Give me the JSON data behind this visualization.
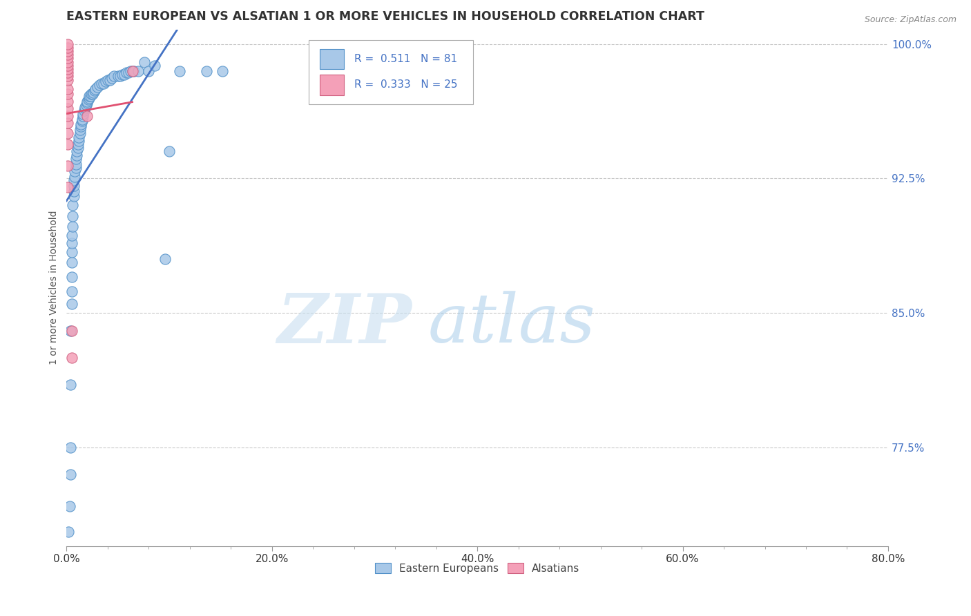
{
  "title": "EASTERN EUROPEAN VS ALSATIAN 1 OR MORE VEHICLES IN HOUSEHOLD CORRELATION CHART",
  "source_text": "Source: ZipAtlas.com",
  "ylabel": "1 or more Vehicles in Household",
  "xlim": [
    0.0,
    0.8
  ],
  "ylim": [
    0.72,
    1.008
  ],
  "xtick_labels": [
    "0.0%",
    "",
    "",
    "",
    "",
    "20.0%",
    "",
    "",
    "",
    "",
    "40.0%",
    "",
    "",
    "",
    "",
    "60.0%",
    "",
    "",
    "",
    "",
    "80.0%"
  ],
  "xtick_vals": [
    0.0,
    0.04,
    0.08,
    0.12,
    0.16,
    0.2,
    0.24,
    0.28,
    0.32,
    0.36,
    0.4,
    0.44,
    0.48,
    0.52,
    0.56,
    0.6,
    0.64,
    0.68,
    0.72,
    0.76,
    0.8
  ],
  "xtick_major_labels": [
    "0.0%",
    "20.0%",
    "40.0%",
    "60.0%",
    "80.0%"
  ],
  "xtick_major_vals": [
    0.0,
    0.2,
    0.4,
    0.6,
    0.8
  ],
  "ytick_labels": [
    "100.0%",
    "92.5%",
    "85.0%",
    "77.5%"
  ],
  "ytick_vals": [
    1.0,
    0.925,
    0.85,
    0.775
  ],
  "legend_entries": [
    "Eastern Europeans",
    "Alsatians"
  ],
  "R_blue": 0.511,
  "N_blue": 81,
  "R_pink": 0.333,
  "N_pink": 25,
  "blue_color": "#A8C8E8",
  "pink_color": "#F4A0B8",
  "blue_edge_color": "#5090C8",
  "pink_edge_color": "#D06080",
  "blue_line_color": "#4472C4",
  "pink_line_color": "#E05070",
  "watermark_zip": "ZIP",
  "watermark_atlas": "atlas",
  "blue_scatter": [
    [
      0.002,
      0.728
    ],
    [
      0.003,
      0.742
    ],
    [
      0.004,
      0.76
    ],
    [
      0.004,
      0.775
    ],
    [
      0.004,
      0.81
    ],
    [
      0.004,
      0.84
    ],
    [
      0.005,
      0.855
    ],
    [
      0.005,
      0.862
    ],
    [
      0.005,
      0.87
    ],
    [
      0.005,
      0.878
    ],
    [
      0.005,
      0.884
    ],
    [
      0.005,
      0.889
    ],
    [
      0.005,
      0.893
    ],
    [
      0.006,
      0.898
    ],
    [
      0.006,
      0.904
    ],
    [
      0.006,
      0.91
    ],
    [
      0.007,
      0.915
    ],
    [
      0.007,
      0.918
    ],
    [
      0.007,
      0.921
    ],
    [
      0.007,
      0.924
    ],
    [
      0.008,
      0.926
    ],
    [
      0.008,
      0.929
    ],
    [
      0.009,
      0.931
    ],
    [
      0.009,
      0.933
    ],
    [
      0.009,
      0.936
    ],
    [
      0.01,
      0.938
    ],
    [
      0.01,
      0.94
    ],
    [
      0.011,
      0.942
    ],
    [
      0.011,
      0.944
    ],
    [
      0.012,
      0.946
    ],
    [
      0.012,
      0.948
    ],
    [
      0.013,
      0.95
    ],
    [
      0.013,
      0.952
    ],
    [
      0.014,
      0.954
    ],
    [
      0.014,
      0.955
    ],
    [
      0.015,
      0.957
    ],
    [
      0.015,
      0.958
    ],
    [
      0.016,
      0.96
    ],
    [
      0.016,
      0.961
    ],
    [
      0.017,
      0.963
    ],
    [
      0.018,
      0.964
    ],
    [
      0.018,
      0.965
    ],
    [
      0.019,
      0.966
    ],
    [
      0.02,
      0.967
    ],
    [
      0.02,
      0.968
    ],
    [
      0.021,
      0.969
    ],
    [
      0.022,
      0.97
    ],
    [
      0.022,
      0.971
    ],
    [
      0.023,
      0.971
    ],
    [
      0.024,
      0.972
    ],
    [
      0.025,
      0.972
    ],
    [
      0.026,
      0.973
    ],
    [
      0.027,
      0.974
    ],
    [
      0.028,
      0.975
    ],
    [
      0.03,
      0.976
    ],
    [
      0.032,
      0.977
    ],
    [
      0.034,
      0.978
    ],
    [
      0.036,
      0.978
    ],
    [
      0.038,
      0.979
    ],
    [
      0.04,
      0.98
    ],
    [
      0.042,
      0.98
    ],
    [
      0.044,
      0.981
    ],
    [
      0.046,
      0.982
    ],
    [
      0.05,
      0.982
    ],
    [
      0.052,
      0.982
    ],
    [
      0.054,
      0.983
    ],
    [
      0.056,
      0.983
    ],
    [
      0.058,
      0.984
    ],
    [
      0.06,
      0.984
    ],
    [
      0.062,
      0.985
    ],
    [
      0.064,
      0.985
    ],
    [
      0.066,
      0.985
    ],
    [
      0.07,
      0.985
    ],
    [
      0.076,
      0.99
    ],
    [
      0.08,
      0.985
    ],
    [
      0.086,
      0.988
    ],
    [
      0.096,
      0.88
    ],
    [
      0.1,
      0.94
    ],
    [
      0.11,
      0.985
    ],
    [
      0.136,
      0.985
    ],
    [
      0.152,
      0.985
    ]
  ],
  "pink_scatter": [
    [
      0.001,
      0.92
    ],
    [
      0.001,
      0.932
    ],
    [
      0.001,
      0.944
    ],
    [
      0.001,
      0.95
    ],
    [
      0.001,
      0.956
    ],
    [
      0.001,
      0.96
    ],
    [
      0.001,
      0.964
    ],
    [
      0.001,
      0.968
    ],
    [
      0.001,
      0.972
    ],
    [
      0.001,
      0.975
    ],
    [
      0.001,
      0.98
    ],
    [
      0.001,
      0.982
    ],
    [
      0.001,
      0.984
    ],
    [
      0.001,
      0.986
    ],
    [
      0.001,
      0.988
    ],
    [
      0.001,
      0.99
    ],
    [
      0.001,
      0.992
    ],
    [
      0.001,
      0.994
    ],
    [
      0.001,
      0.996
    ],
    [
      0.001,
      0.998
    ],
    [
      0.001,
      1.0
    ],
    [
      0.005,
      0.825
    ],
    [
      0.005,
      0.84
    ],
    [
      0.02,
      0.96
    ],
    [
      0.064,
      0.985
    ]
  ],
  "blue_size": 120,
  "pink_size": 120
}
